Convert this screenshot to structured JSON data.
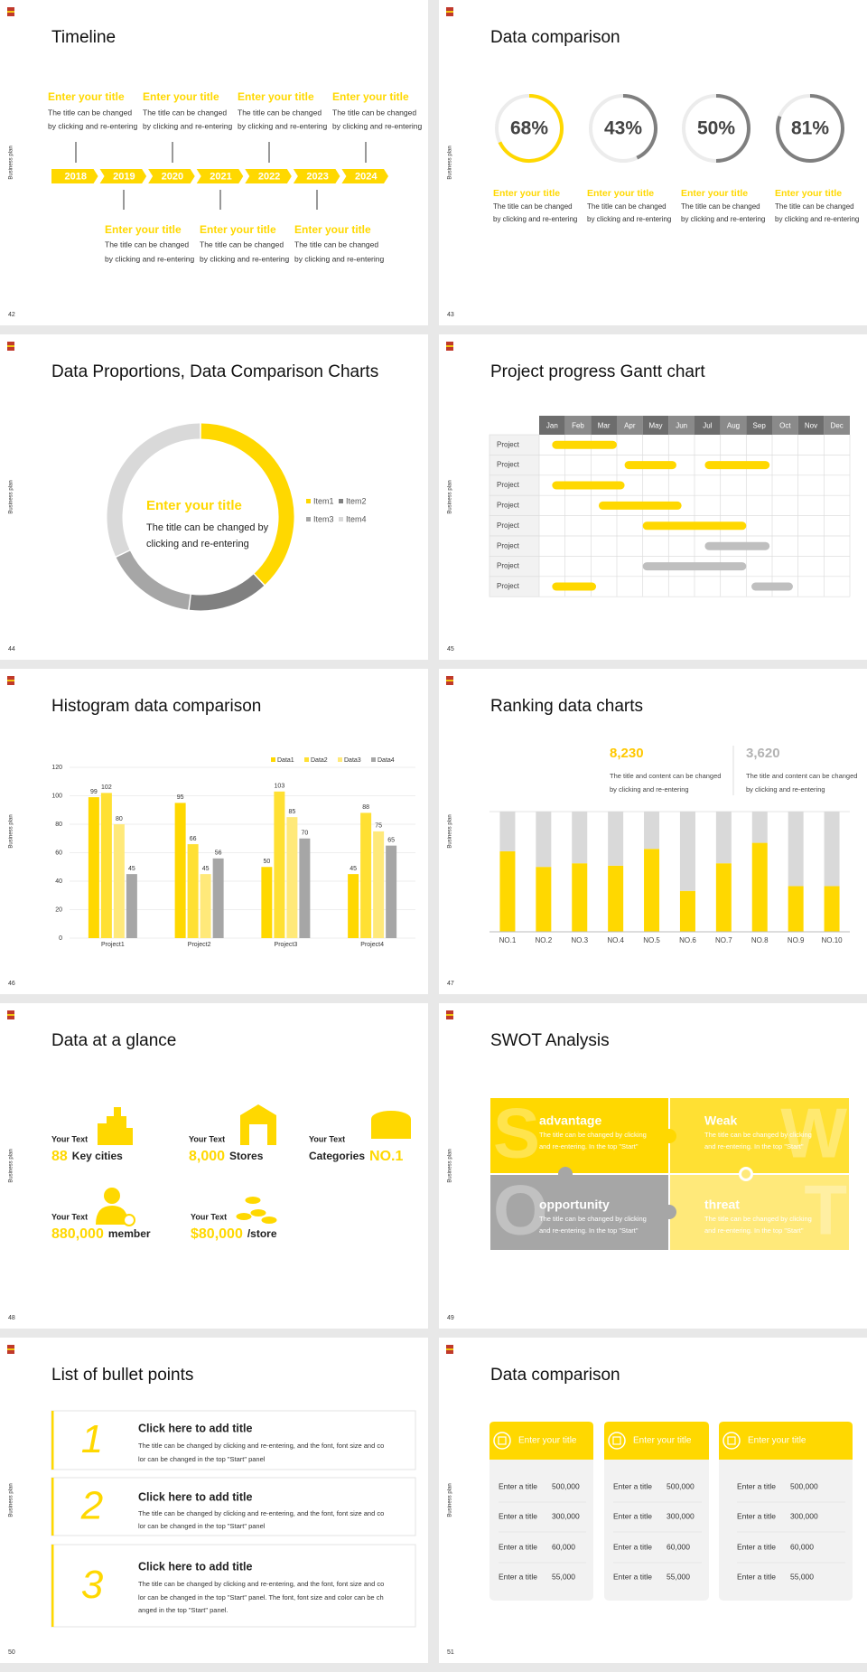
{
  "slides": [
    {
      "page": "42",
      "side": "Business plan",
      "title": "Timeline",
      "years": [
        "2018",
        "2019",
        "2020",
        "2021",
        "2022",
        "2023",
        "2024"
      ],
      "top_items": [
        {
          "title": "Enter your title",
          "lines": [
            "The title can be changed",
            "by clicking and re-entering"
          ]
        },
        {
          "title": "Enter your title",
          "lines": [
            "The title can be changed",
            "by clicking and re-entering"
          ]
        },
        {
          "title": "Enter your title",
          "lines": [
            "The title can be changed",
            "by clicking and re-entering"
          ]
        },
        {
          "title": "Enter your title",
          "lines": [
            "The title can be changed",
            "by clicking and re-entering"
          ]
        }
      ],
      "bottom_items": [
        {
          "title": "Enter your title",
          "lines": [
            "The title can be changed",
            "by clicking and re-entering"
          ]
        },
        {
          "title": "Enter your title",
          "lines": [
            "The title can be changed",
            "by clicking and re-entering"
          ]
        },
        {
          "title": "Enter your title",
          "lines": [
            "The title can be changed",
            "by clicking and re-entering"
          ]
        }
      ]
    },
    {
      "page": "43",
      "side": "Business plan",
      "title": "Data comparison",
      "rings": [
        {
          "value": 68,
          "value_label": "68%",
          "color": "#ffd800",
          "title": "Enter your title",
          "lines": [
            "The title can be changed",
            "by clicking and re-entering"
          ]
        },
        {
          "value": 43,
          "value_label": "43%",
          "color": "#7f7f7f",
          "title": "Enter your title",
          "lines": [
            "The title can be changed",
            "by clicking and re-entering"
          ]
        },
        {
          "value": 50,
          "value_label": "50%",
          "color": "#7f7f7f",
          "title": "Enter your title",
          "lines": [
            "The title can be changed",
            "by clicking and re-entering"
          ]
        },
        {
          "value": 81,
          "value_label": "81%",
          "color": "#7f7f7f",
          "title": "Enter your title",
          "lines": [
            "The title can be changed",
            "by clicking and re-entering"
          ]
        }
      ]
    },
    {
      "page": "44",
      "side": "Business plan",
      "title": "Data Proportions, Data Comparison Charts",
      "center_title": "Enter your title",
      "center_lines": [
        "The title can be changed by",
        "clicking and re-entering"
      ],
      "donut": {
        "type": "pie",
        "categories": [
          "Item1",
          "Item2",
          "Item3",
          "Item4"
        ],
        "values": [
          38,
          14,
          16,
          32
        ],
        "colors": [
          "#ffd800",
          "#808080",
          "#a6a6a6",
          "#d9d9d9"
        ]
      }
    },
    {
      "page": "45",
      "side": "Business plan",
      "title": "Project progress Gantt chart",
      "months": [
        "Jan",
        "Feb",
        "Mar",
        "Apr",
        "May",
        "Jun",
        "Jul",
        "Aug",
        "Sep",
        "Oct",
        "Nov",
        "Dec"
      ],
      "rows": [
        {
          "label": "Project",
          "bars": [
            {
              "start": 0.5,
              "end": 3,
              "color": "#ffd800"
            }
          ]
        },
        {
          "label": "Project",
          "bars": [
            {
              "start": 3.3,
              "end": 5.3,
              "color": "#ffd800"
            },
            {
              "start": 6.4,
              "end": 8.9,
              "color": "#ffd800"
            }
          ]
        },
        {
          "label": "Project",
          "bars": [
            {
              "start": 0.5,
              "end": 3.3,
              "color": "#ffd800"
            }
          ]
        },
        {
          "label": "Project",
          "bars": [
            {
              "start": 2.3,
              "end": 5.5,
              "color": "#ffd800"
            }
          ]
        },
        {
          "label": "Project",
          "bars": [
            {
              "start": 4,
              "end": 8,
              "color": "#ffd800"
            }
          ]
        },
        {
          "label": "Project",
          "bars": [
            {
              "start": 6.4,
              "end": 8.9,
              "color": "#bfbfbf"
            }
          ]
        },
        {
          "label": "Project",
          "bars": [
            {
              "start": 4,
              "end": 8,
              "color": "#bfbfbf"
            }
          ]
        },
        {
          "label": "Project",
          "bars": [
            {
              "start": 0.5,
              "end": 2.2,
              "color": "#ffd800"
            },
            {
              "start": 8.2,
              "end": 9.8,
              "color": "#bfbfbf"
            }
          ]
        }
      ]
    },
    {
      "page": "46",
      "side": "Business plan",
      "title": "Histogram data comparison",
      "chart": {
        "type": "bar",
        "categories": [
          "Project1",
          "Project2",
          "Project3",
          "Project4"
        ],
        "series": [
          {
            "name": "Data1",
            "color": "#ffd800",
            "values": [
              99,
              95,
              50,
              45
            ]
          },
          {
            "name": "Data2",
            "color": "#ffe033",
            "values": [
              102,
              66,
              103,
              88
            ]
          },
          {
            "name": "Data3",
            "color": "#ffe97a",
            "values": [
              80,
              45,
              85,
              75
            ]
          },
          {
            "name": "Data4",
            "color": "#a6a6a6",
            "values": [
              45,
              56,
              70,
              65
            ]
          }
        ],
        "ylim": [
          0,
          120
        ],
        "yticks": [
          0,
          20,
          40,
          60,
          80,
          100,
          120
        ],
        "grid": true
      }
    },
    {
      "page": "47",
      "side": "Business plan",
      "title": "Ranking data charts",
      "stats": [
        {
          "value": "8,230",
          "lines": [
            "The title and content can be changed",
            "by clicking and re-entering"
          ]
        },
        {
          "value": "3,620",
          "lines": [
            "The title and content can be changed",
            "by clicking and re-entering"
          ]
        }
      ],
      "chart": {
        "type": "bar",
        "categories": [
          "NO.1",
          "NO.2",
          "NO.3",
          "NO.4",
          "NO.5",
          "NO.6",
          "NO.7",
          "NO.8",
          "NO.9",
          "NO.10"
        ],
        "series": [
          {
            "color": "#ffd800",
            "values": [
              67,
              54,
              57,
              55,
              69,
              34,
              57,
              74,
              38,
              38
            ]
          },
          {
            "color": "#d9d9d9",
            "values": [
              33,
              46,
              43,
              45,
              31,
              66,
              43,
              26,
              62,
              62
            ]
          }
        ],
        "ylim": [
          0,
          100
        ]
      }
    },
    {
      "page": "48",
      "side": "Business plan",
      "title": "Data at a glance",
      "items": [
        {
          "caption": "Your Text",
          "parts": [
            {
              "text": "88",
              "big": true
            },
            {
              "text": "Key cities",
              "big": false
            }
          ]
        },
        {
          "caption": "Your Text",
          "parts": [
            {
              "text": "8,000",
              "big": true
            },
            {
              "text": "Stores",
              "big": false
            }
          ]
        },
        {
          "caption": "Your Text",
          "parts": [
            {
              "text": "Categories",
              "big": false
            },
            {
              "text": "NO.1",
              "big": true
            }
          ]
        },
        {
          "caption": "Your Text",
          "parts": [
            {
              "text": "880,000",
              "big": true
            },
            {
              "text": "member",
              "big": false
            }
          ]
        },
        {
          "caption": "Your Text",
          "parts": [
            {
              "text": "$80,000",
              "big": true
            },
            {
              "text": "/store",
              "big": false
            }
          ]
        }
      ]
    },
    {
      "page": "49",
      "side": "Business plan",
      "title": "SWOT Analysis",
      "quadrants": [
        {
          "letter": "S",
          "title": "advantage",
          "color": "#ffd800",
          "lines": [
            "The title can be changed by clicking",
            "and re-entering. In the top \"Start\""
          ]
        },
        {
          "letter": "W",
          "title": "Weak",
          "color": "#ffe033",
          "lines": [
            "The title can be changed by clicking",
            "and re-entering. In the top \"Start\""
          ]
        },
        {
          "letter": "O",
          "title": "opportunity",
          "color": "#a6a6a6",
          "lines": [
            "The title can be changed by clicking",
            "and re-entering. In the top \"Start\""
          ]
        },
        {
          "letter": "T",
          "title": "threat",
          "color": "#ffe97a",
          "lines": [
            "The title can be changed by clicking",
            "and re-entering. In the top \"Start\""
          ]
        }
      ]
    },
    {
      "page": "50",
      "side": "Business plan",
      "title": "List of bullet points",
      "items": [
        {
          "number": "1",
          "title": "Click here to add title",
          "lines": [
            "The title can be changed by clicking and re-entering, and the font, font size and co",
            "lor can be changed in the top \"Start\" panel"
          ]
        },
        {
          "number": "2",
          "title": "Click here to add title",
          "lines": [
            "The title can be changed by clicking and re-entering, and the font, font size and co",
            "lor can be changed in the top \"Start\" panel"
          ]
        },
        {
          "number": "3",
          "title": "Click here to add title",
          "lines": [
            "The title can be changed by clicking and re-entering, and the font, font size and co",
            "lor can be changed in the top \"Start\" panel. The font, font size and color can be ch",
            "anged in the top \"Start\" panel."
          ]
        }
      ]
    },
    {
      "page": "51",
      "side": "Business plan",
      "title": "Data comparison",
      "cards": [
        {
          "title": "Enter your title",
          "rows": [
            {
              "label": "Enter a title",
              "value": "500,000"
            },
            {
              "label": "Enter a title",
              "value": "300,000"
            },
            {
              "label": "Enter a title",
              "value": "60,000"
            },
            {
              "label": "Enter a title",
              "value": "55,000"
            }
          ]
        },
        {
          "title": "Enter your title",
          "rows": [
            {
              "label": "Enter a title",
              "value": "500,000"
            },
            {
              "label": "Enter a title",
              "value": "300,000"
            },
            {
              "label": "Enter a title",
              "value": "60,000"
            },
            {
              "label": "Enter a title",
              "value": "55,000"
            }
          ]
        },
        {
          "title": "Enter your title",
          "rows": [
            {
              "label": "Enter a title",
              "value": "500,000"
            },
            {
              "label": "Enter a title",
              "value": "300,000"
            },
            {
              "label": "Enter a title",
              "value": "60,000"
            },
            {
              "label": "Enter a title",
              "value": "55,000"
            }
          ]
        }
      ]
    }
  ]
}
